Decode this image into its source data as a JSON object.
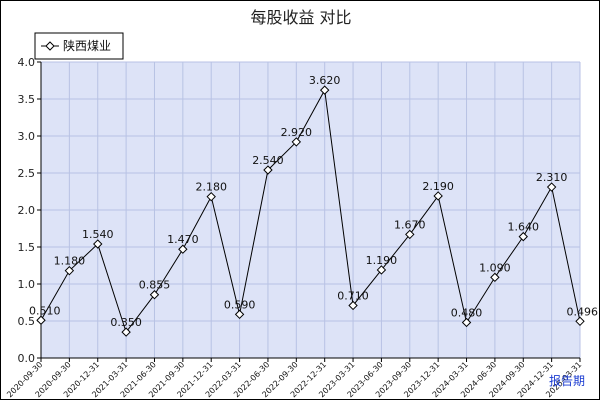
{
  "chart_data": {
    "type": "line",
    "title": "每股收益  对比",
    "xlabel": "报告期",
    "ylabel": "",
    "ylim": [
      0.0,
      4.0
    ],
    "yticks": [
      "0.0",
      "0.5",
      "1.0",
      "1.5",
      "2.0",
      "2.5",
      "3.0",
      "3.5",
      "4.0"
    ],
    "grid": true,
    "legend_position": "top-left",
    "categories": [
      "2020-09-30",
      "2020-09-30",
      "2020-12-31",
      "2021-03-31",
      "2021-06-30",
      "2021-09-30",
      "2021-12-31",
      "2022-03-31",
      "2022-06-30",
      "2022-09-30",
      "2022-12-31",
      "2023-03-31",
      "2023-06-30",
      "2023-09-30",
      "2023-12-31",
      "2024-03-31",
      "2024-06-30",
      "2024-09-30",
      "2024-12-31",
      "2025-03-31"
    ],
    "series": [
      {
        "name": "陕西煤业",
        "values": [
          0.51,
          1.18,
          1.54,
          0.35,
          0.855,
          1.47,
          2.18,
          0.59,
          2.54,
          2.92,
          3.62,
          0.71,
          1.19,
          1.67,
          2.19,
          0.48,
          1.09,
          1.64,
          2.31,
          0.496
        ],
        "labels": [
          "0.510",
          "1.180",
          "1.540",
          "0.350",
          "0.855",
          "1.470",
          "2.180",
          "0.590",
          "2.540",
          "2.920",
          "3.620",
          "0.710",
          "1.190",
          "1.670",
          "2.190",
          "0.480",
          "1.090",
          "1.640",
          "2.310",
          "0.496"
        ]
      }
    ],
    "colors": {
      "plot_background": "#dde3f7",
      "grid": "#b8c2e4",
      "line": "#000000",
      "marker_fill": "#ffffff",
      "xlabel": "#1a3bd1"
    }
  }
}
